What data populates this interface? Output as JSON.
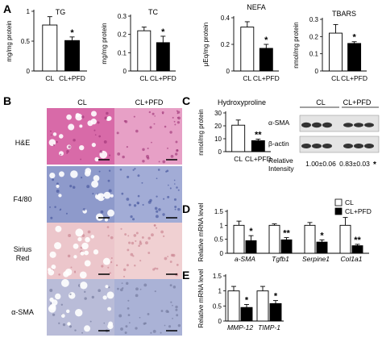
{
  "panels": {
    "A": "A",
    "B": "B",
    "C": "C",
    "D": "D",
    "E": "E"
  },
  "chart_data": [
    {
      "panel": "A",
      "type": "bar",
      "title": "TG",
      "ylabel": "mg/mg protein",
      "ylim": [
        0,
        1
      ],
      "yticks": [
        "0",
        "0.5",
        "1"
      ],
      "categories": [
        "CL",
        "CL+PFD"
      ],
      "values": [
        0.77,
        0.51
      ],
      "errors": [
        0.14,
        0.06
      ],
      "bar_colors": [
        "#ffffff",
        "#000000"
      ],
      "significance": [
        "",
        "*"
      ]
    },
    {
      "panel": "A",
      "type": "bar",
      "title": "TC",
      "ylabel": "mg/mg protein",
      "ylim": [
        0,
        0.3
      ],
      "yticks": [
        "0",
        "0.1",
        "0.2",
        "0.3"
      ],
      "categories": [
        "CL",
        "CL+PFD"
      ],
      "values": [
        0.22,
        0.155
      ],
      "errors": [
        0.02,
        0.035
      ],
      "bar_colors": [
        "#ffffff",
        "#000000"
      ],
      "significance": [
        "",
        "*"
      ]
    },
    {
      "panel": "A",
      "type": "bar",
      "title": "NEFA",
      "ylabel": "μEq/mg protein",
      "ylim": [
        0,
        0.4
      ],
      "yticks": [
        "0",
        "0.2",
        "0.4"
      ],
      "categories": [
        "CL",
        "CL+PFD"
      ],
      "values": [
        0.33,
        0.17
      ],
      "errors": [
        0.04,
        0.03
      ],
      "bar_colors": [
        "#ffffff",
        "#000000"
      ],
      "significance": [
        "",
        "*"
      ]
    },
    {
      "panel": "A",
      "type": "bar",
      "title": "TBARS",
      "ylabel": "nmol/mg protein",
      "ylim": [
        0,
        0.3
      ],
      "yticks": [
        "0",
        "0.1",
        "0.2",
        "0.3"
      ],
      "categories": [
        "CL",
        "CL+PFD"
      ],
      "values": [
        0.22,
        0.16
      ],
      "errors": [
        0.05,
        0.01
      ],
      "bar_colors": [
        "#ffffff",
        "#000000"
      ],
      "significance": [
        "",
        "*"
      ]
    },
    {
      "panel": "C",
      "type": "bar",
      "title": "Hydroxyproline",
      "ylabel": "nmol/mg protein",
      "ylim": [
        0,
        30
      ],
      "yticks": [
        "0",
        "10",
        "20",
        "30"
      ],
      "categories": [
        "CL",
        "CL+PFD"
      ],
      "values": [
        20.5,
        8.5
      ],
      "errors": [
        4.0,
        1.2
      ],
      "bar_colors": [
        "#ffffff",
        "#000000"
      ],
      "significance": [
        "",
        "**"
      ]
    },
    {
      "panel": "D",
      "type": "bar",
      "ylabel": "Relative mRNA level",
      "ylim": [
        0,
        1.5
      ],
      "yticks": [
        "0",
        "0.5",
        "1",
        "1.5"
      ],
      "categories": [
        "a-SMA",
        "Tgfb1",
        "Serpine1",
        "Col1a1"
      ],
      "series": [
        {
          "name": "CL",
          "values": [
            1.0,
            1.0,
            1.0,
            1.0
          ],
          "errors": [
            0.15,
            0.05,
            0.1,
            0.28
          ],
          "color": "#ffffff"
        },
        {
          "name": "CL+PFD",
          "values": [
            0.45,
            0.48,
            0.4,
            0.27
          ],
          "errors": [
            0.18,
            0.08,
            0.08,
            0.05
          ],
          "color": "#000000"
        }
      ],
      "significance": [
        "*",
        "**",
        "*",
        "**"
      ],
      "legend": "top-right"
    },
    {
      "panel": "E",
      "type": "bar",
      "ylabel": "Relative mRNA level",
      "ylim": [
        0,
        1.5
      ],
      "yticks": [
        "0",
        "0.5",
        "1",
        "1.5"
      ],
      "categories": [
        "MMP-12",
        "TIMP-1"
      ],
      "series": [
        {
          "name": "CL",
          "values": [
            1.0,
            1.0
          ],
          "errors": [
            0.15,
            0.15
          ],
          "color": "#ffffff"
        },
        {
          "name": "CL+PFD",
          "values": [
            0.45,
            0.58
          ],
          "errors": [
            0.1,
            0.1
          ],
          "color": "#000000"
        }
      ],
      "significance": [
        "*",
        "*"
      ]
    }
  ],
  "histology": {
    "column_labels": [
      "CL",
      "CL+PFD"
    ],
    "row_labels": [
      "H&E",
      "F4/80",
      "Sirius Red",
      "α-SMA"
    ],
    "row_colors": [
      [
        "#d86aa8",
        "#e7a0c6"
      ],
      [
        "#8e9acb",
        "#a2acd6"
      ],
      [
        "#ecc6cb",
        "#f0d0d2"
      ],
      [
        "#b9bcd8",
        "#aab2d6"
      ]
    ]
  },
  "western": {
    "groups": [
      "CL",
      "CL+PFD"
    ],
    "bands": [
      "α-SMA",
      "β-actin"
    ],
    "intensity_label": "Relative Intensity",
    "intensity_values": [
      "1.00±0.06",
      "0.83±0.03"
    ],
    "intensity_sig": "*"
  }
}
